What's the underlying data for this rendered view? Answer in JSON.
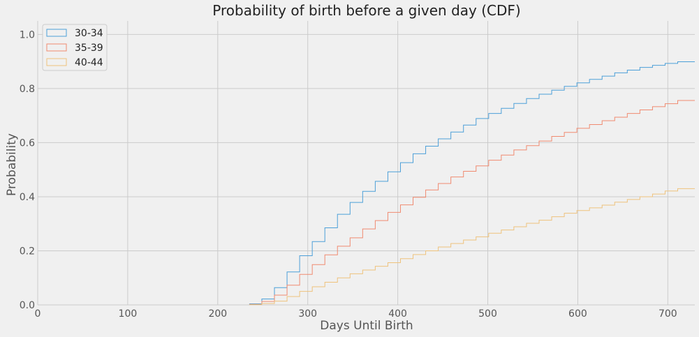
{
  "chart_data": {
    "type": "line",
    "title": "Probability of birth before a given day (CDF)",
    "xlabel": "Days Until Birth",
    "ylabel": "Probability",
    "xlim": [
      0,
      730
    ],
    "ylim": [
      0,
      1.05
    ],
    "xticks": [
      0,
      100,
      200,
      300,
      400,
      500,
      600,
      700
    ],
    "xtick_labels": [
      "0",
      "100",
      "200",
      "300",
      "400",
      "500",
      "600",
      "700"
    ],
    "yticks": [
      0.0,
      0.2,
      0.4,
      0.6,
      0.8,
      1.0
    ],
    "ytick_labels": [
      "0.0",
      "0.2",
      "0.4",
      "0.6",
      "0.8",
      "1.0"
    ],
    "grid": true,
    "legend_position": "top-left",
    "step_style": "post",
    "x": [
      235,
      249,
      263,
      277,
      291,
      305,
      319,
      333,
      347,
      361,
      375,
      389,
      403,
      417,
      431,
      445,
      459,
      473,
      487,
      501,
      515,
      529,
      543,
      557,
      571,
      585,
      599,
      613,
      627,
      641,
      655,
      669,
      683,
      697,
      711,
      730
    ],
    "series": [
      {
        "name": "30-34",
        "color": "#4c9fd8",
        "values": [
          0.004,
          0.022,
          0.064,
          0.122,
          0.182,
          0.234,
          0.285,
          0.335,
          0.379,
          0.42,
          0.457,
          0.492,
          0.526,
          0.559,
          0.587,
          0.614,
          0.639,
          0.665,
          0.689,
          0.708,
          0.727,
          0.745,
          0.763,
          0.779,
          0.794,
          0.808,
          0.821,
          0.834,
          0.846,
          0.858,
          0.868,
          0.878,
          0.886,
          0.893,
          0.899,
          0.899
        ]
      },
      {
        "name": "35-39",
        "color": "#f08a70",
        "values": [
          0.002,
          0.013,
          0.036,
          0.073,
          0.113,
          0.149,
          0.185,
          0.217,
          0.248,
          0.281,
          0.312,
          0.342,
          0.37,
          0.398,
          0.425,
          0.449,
          0.473,
          0.494,
          0.514,
          0.535,
          0.554,
          0.573,
          0.589,
          0.606,
          0.623,
          0.638,
          0.653,
          0.667,
          0.681,
          0.694,
          0.708,
          0.721,
          0.733,
          0.744,
          0.756,
          0.756
        ]
      },
      {
        "name": "40-44",
        "color": "#eec27c",
        "values": [
          0.001,
          0.005,
          0.014,
          0.031,
          0.05,
          0.067,
          0.084,
          0.1,
          0.115,
          0.129,
          0.143,
          0.156,
          0.171,
          0.186,
          0.2,
          0.214,
          0.227,
          0.24,
          0.252,
          0.265,
          0.277,
          0.289,
          0.302,
          0.313,
          0.326,
          0.339,
          0.349,
          0.359,
          0.369,
          0.38,
          0.39,
          0.4,
          0.41,
          0.421,
          0.43,
          0.43
        ]
      }
    ]
  }
}
